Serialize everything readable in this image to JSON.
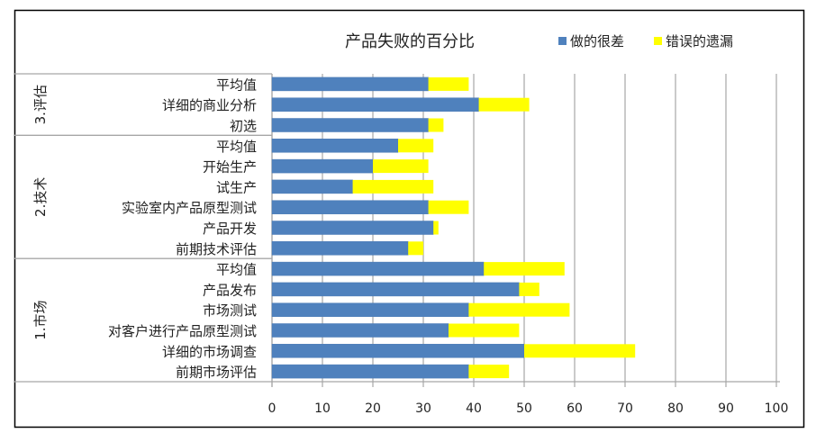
{
  "chart_data": {
    "type": "bar",
    "orientation": "horizontal",
    "stacked": true,
    "title": "产品失败的百分比",
    "xlim": [
      0,
      100
    ],
    "xticks": [
      0,
      10,
      20,
      30,
      40,
      50,
      60,
      70,
      80,
      90,
      100
    ],
    "grid": true,
    "legend_position": "top-right",
    "series": [
      {
        "name": "做的很差",
        "color": "#4f81bd"
      },
      {
        "name": "错误的遗漏",
        "color": "#ffff00"
      }
    ],
    "groups": [
      {
        "label": "3.评估",
        "categories": [
          {
            "label": "平均值",
            "values": [
              31,
              8
            ]
          },
          {
            "label": "详细的商业分析",
            "values": [
              41,
              10
            ]
          },
          {
            "label": "初选",
            "values": [
              31,
              3
            ]
          }
        ]
      },
      {
        "label": "2.技术",
        "categories": [
          {
            "label": "平均值",
            "values": [
              25,
              7
            ]
          },
          {
            "label": "开始生产",
            "values": [
              20,
              11
            ]
          },
          {
            "label": "试生产",
            "values": [
              16,
              16
            ]
          },
          {
            "label": "实验室内产品原型测试",
            "values": [
              31,
              8
            ]
          },
          {
            "label": "产品开发",
            "values": [
              32,
              1
            ]
          },
          {
            "label": "前期技术评估",
            "values": [
              27,
              3
            ]
          }
        ]
      },
      {
        "label": "1.市场",
        "categories": [
          {
            "label": "平均值",
            "values": [
              42,
              16
            ]
          },
          {
            "label": "产品发布",
            "values": [
              49,
              4
            ]
          },
          {
            "label": "市场测试",
            "values": [
              39,
              20
            ]
          },
          {
            "label": "对客户进行产品原型测试",
            "values": [
              35,
              14
            ]
          },
          {
            "label": "详细的市场调查",
            "values": [
              50,
              22
            ]
          },
          {
            "label": "前期市场评估",
            "values": [
              39,
              8
            ]
          }
        ]
      }
    ]
  }
}
